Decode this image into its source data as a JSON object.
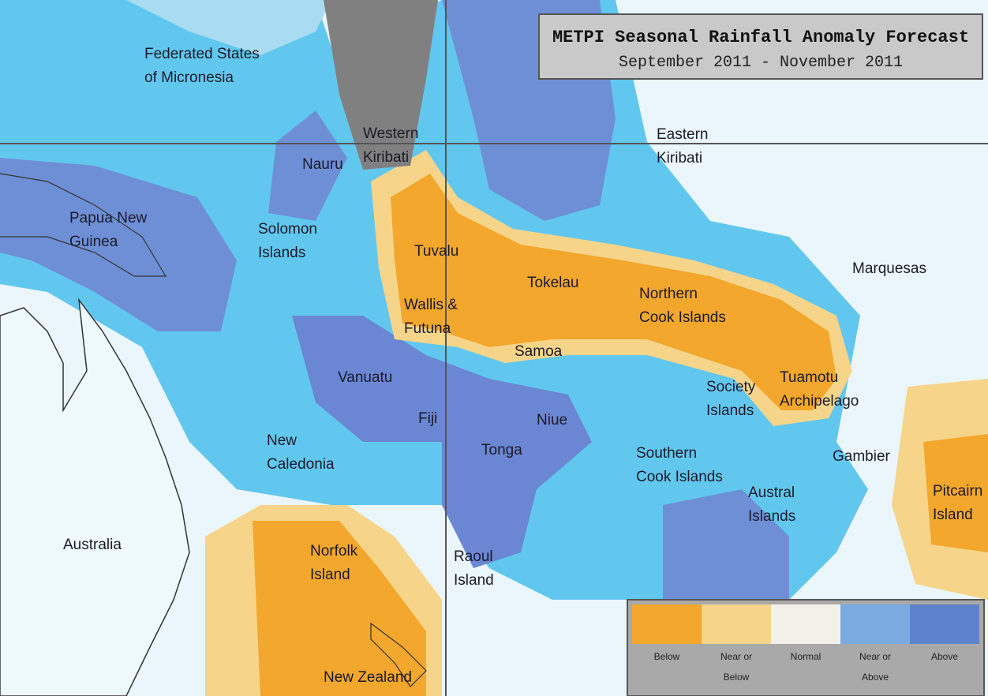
{
  "title": "METPI Seasonal Rainfall Anomaly Forecast",
  "subtitle": "September 2011 - November 2011",
  "places": [
    {
      "lines": [
        "Federated States",
        "of Micronesia"
      ]
    },
    {
      "lines": [
        "Nauru"
      ]
    },
    {
      "lines": [
        "Western",
        "Kiribati"
      ]
    },
    {
      "lines": [
        "Eastern",
        "Kiribati"
      ]
    },
    {
      "lines": [
        "Papua New",
        "Guinea"
      ]
    },
    {
      "lines": [
        "Solomon",
        "Islands"
      ]
    },
    {
      "lines": [
        "Tuvalu"
      ]
    },
    {
      "lines": [
        "Tokelau"
      ]
    },
    {
      "lines": [
        "Northern",
        "Cook Islands"
      ]
    },
    {
      "lines": [
        "Marquesas"
      ]
    },
    {
      "lines": [
        "Wallis &",
        "Futuna"
      ]
    },
    {
      "lines": [
        "Samoa"
      ]
    },
    {
      "lines": [
        "Vanuatu"
      ]
    },
    {
      "lines": [
        "Fiji"
      ]
    },
    {
      "lines": [
        "Niue"
      ]
    },
    {
      "lines": [
        "Society",
        "Islands"
      ]
    },
    {
      "lines": [
        "Tuamotu",
        "Archipelago"
      ]
    },
    {
      "lines": [
        "New",
        "Caledonia"
      ]
    },
    {
      "lines": [
        "Tonga"
      ]
    },
    {
      "lines": [
        "Southern",
        "Cook Islands"
      ]
    },
    {
      "lines": [
        "Gambier"
      ]
    },
    {
      "lines": [
        "Austral",
        "Islands"
      ]
    },
    {
      "lines": [
        "Pitcairn",
        "Island"
      ]
    },
    {
      "lines": [
        "Australia"
      ]
    },
    {
      "lines": [
        "Norfolk",
        "Island"
      ]
    },
    {
      "lines": [
        "Raoul",
        "Island"
      ]
    },
    {
      "lines": [
        "New Zealand"
      ]
    }
  ],
  "legend": [
    {
      "lines": [
        "Below"
      ],
      "color": "#f3a72c"
    },
    {
      "lines": [
        "Near or",
        "Below"
      ],
      "color": "#f6d58a"
    },
    {
      "lines": [
        "Normal"
      ],
      "color": "#f1f1ea"
    },
    {
      "lines": [
        "Near or",
        "Above"
      ],
      "color": "#7aaae0"
    },
    {
      "lines": [
        "Above"
      ],
      "color": "#5e83cc"
    }
  ]
}
